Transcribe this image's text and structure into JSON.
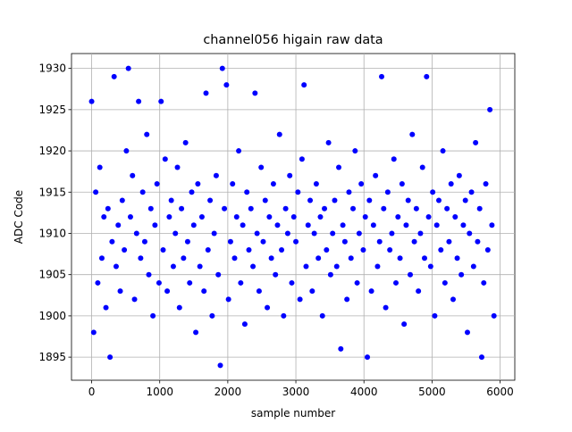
{
  "chart_data": {
    "type": "scatter",
    "title": "channel056 higain raw data",
    "x_label": "sample number",
    "y_label": "ADC Code",
    "grid": true,
    "xlim": [
      -296,
      6216
    ],
    "ylim": [
      1892.2,
      1931.8
    ],
    "xticks": [
      0,
      1000,
      2000,
      3000,
      4000,
      5000,
      6000
    ],
    "yticks": [
      1895,
      1900,
      1905,
      1910,
      1915,
      1920,
      1925,
      1930
    ],
    "series": [
      {
        "color": "blue",
        "x": [
          0,
          30,
          60,
          90,
          120,
          150,
          180,
          210,
          240,
          270,
          300,
          330,
          360,
          390,
          420,
          450,
          480,
          510,
          540,
          570,
          600,
          630,
          660,
          690,
          720,
          750,
          780,
          810,
          840,
          870,
          900,
          930,
          960,
          990,
          1020,
          1050,
          1080,
          1110,
          1140,
          1170,
          1200,
          1230,
          1260,
          1290,
          1320,
          1350,
          1380,
          1410,
          1440,
          1470,
          1500,
          1530,
          1560,
          1590,
          1620,
          1650,
          1680,
          1710,
          1740,
          1770,
          1800,
          1830,
          1860,
          1890,
          1920,
          1950,
          1980,
          2010,
          2040,
          2070,
          2100,
          2130,
          2160,
          2190,
          2220,
          2250,
          2280,
          2310,
          2340,
          2370,
          2400,
          2430,
          2460,
          2490,
          2520,
          2550,
          2580,
          2610,
          2640,
          2670,
          2700,
          2730,
          2760,
          2790,
          2820,
          2850,
          2880,
          2910,
          2940,
          2970,
          3000,
          3030,
          3060,
          3090,
          3120,
          3150,
          3180,
          3210,
          3240,
          3270,
          3300,
          3330,
          3360,
          3390,
          3420,
          3450,
          3480,
          3510,
          3540,
          3570,
          3600,
          3630,
          3660,
          3690,
          3720,
          3750,
          3780,
          3810,
          3840,
          3870,
          3900,
          3930,
          3960,
          3990,
          4020,
          4050,
          4080,
          4110,
          4140,
          4170,
          4200,
          4230,
          4260,
          4290,
          4320,
          4350,
          4380,
          4410,
          4440,
          4470,
          4500,
          4530,
          4560,
          4590,
          4620,
          4650,
          4680,
          4710,
          4740,
          4770,
          4800,
          4830,
          4860,
          4890,
          4920,
          4950,
          4980,
          5010,
          5040,
          5070,
          5100,
          5130,
          5160,
          5190,
          5220,
          5250,
          5280,
          5310,
          5340,
          5370,
          5400,
          5430,
          5460,
          5490,
          5520,
          5550,
          5580,
          5610,
          5640,
          5670,
          5700,
          5730,
          5760,
          5790,
          5820,
          5850,
          5880,
          5910
        ],
        "values": [
          1926,
          1898,
          1915,
          1904,
          1918,
          1907,
          1912,
          1901,
          1913,
          1895,
          1909,
          1929,
          1906,
          1911,
          1903,
          1914,
          1908,
          1920,
          1930,
          1912,
          1917,
          1902,
          1910,
          1926,
          1907,
          1915,
          1909,
          1922,
          1905,
          1913,
          1900,
          1911,
          1916,
          1904,
          1926,
          1908,
          1919,
          1903,
          1912,
          1914,
          1906,
          1910,
          1918,
          1901,
          1913,
          1907,
          1921,
          1909,
          1904,
          1915,
          1911,
          1898,
          1916,
          1906,
          1912,
          1903,
          1927,
          1908,
          1914,
          1900,
          1910,
          1917,
          1905,
          1894,
          1930,
          1913,
          1928,
          1902,
          1909,
          1916,
          1907,
          1912,
          1920,
          1904,
          1911,
          1899,
          1915,
          1908,
          1913,
          1906,
          1927,
          1910,
          1903,
          1918,
          1909,
          1914,
          1901,
          1912,
          1907,
          1916,
          1905,
          1911,
          1922,
          1908,
          1900,
          1913,
          1910,
          1917,
          1904,
          1912,
          1909,
          1915,
          1902,
          1919,
          1928,
          1906,
          1911,
          1914,
          1903,
          1910,
          1916,
          1907,
          1912,
          1900,
          1913,
          1908,
          1921,
          1905,
          1910,
          1914,
          1906,
          1918,
          1896,
          1911,
          1909,
          1902,
          1915,
          1907,
          1913,
          1920,
          1904,
          1910,
          1916,
          1908,
          1912,
          1895,
          1914,
          1903,
          1911,
          1917,
          1906,
          1909,
          1929,
          1913,
          1901,
          1915,
          1908,
          1910,
          1919,
          1904,
          1912,
          1907,
          1916,
          1899,
          1911,
          1914,
          1905,
          1922,
          1909,
          1913,
          1903,
          1910,
          1918,
          1907,
          1929,
          1912,
          1906,
          1915,
          1900,
          1911,
          1914,
          1908,
          1920,
          1904,
          1913,
          1909,
          1916,
          1902,
          1912,
          1907,
          1917,
          1905,
          1911,
          1914,
          1898,
          1910,
          1915,
          1906,
          1921,
          1909,
          1913,
          1895,
          1904,
          1916,
          1908,
          1925,
          1911,
          1900
        ]
      }
    ]
  }
}
